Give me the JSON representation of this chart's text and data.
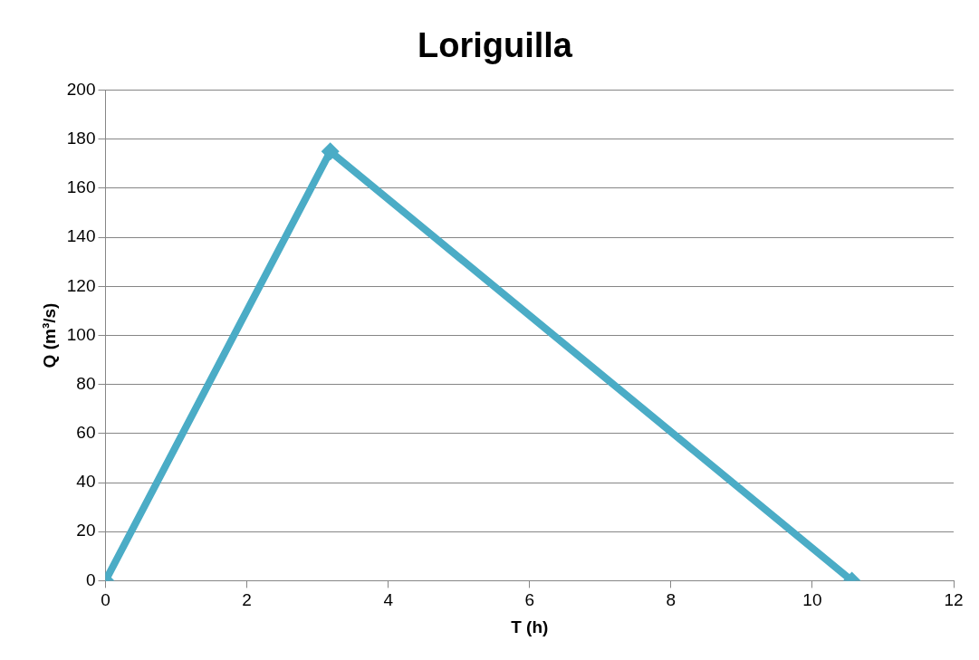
{
  "chart_data": {
    "type": "scatter",
    "title": "Loriguilla",
    "xlabel": "T (h)",
    "ylabel": "Q (m³/s)",
    "series": [
      {
        "type": "line",
        "color": "#4bacc6",
        "x": [
          0,
          3.18,
          10.56
        ],
        "values": [
          0,
          175,
          0
        ]
      }
    ],
    "xlim": [
      0,
      12
    ],
    "xticks": [
      0,
      2,
      4,
      6,
      8,
      10,
      12
    ],
    "ylim": [
      0,
      200
    ],
    "yticks": [
      0,
      20,
      40,
      60,
      80,
      100,
      120,
      140,
      160,
      180,
      200
    ],
    "grid": "y",
    "legend": false,
    "marker": "diamond",
    "line_style": "solid"
  }
}
